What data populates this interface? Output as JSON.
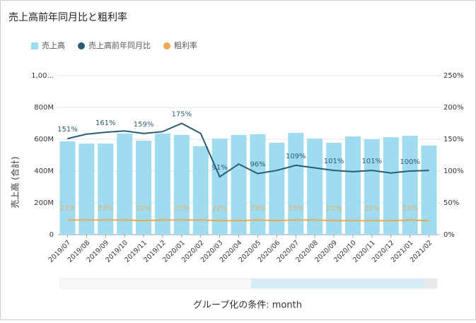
{
  "chart_data": {
    "type": "bar-line",
    "title": "売上高前年同月比と粗利率",
    "ylabel": "売上高 (合計)",
    "xlabel": "グループ化の条件: month",
    "categories": [
      "2019/07",
      "2019/08",
      "2019/09",
      "2019/10",
      "2019/11",
      "2019/12",
      "2020/01",
      "2020/02",
      "2020/03",
      "2020/04",
      "2020/05",
      "2020/06",
      "2020/07",
      "2020/08",
      "2020/09",
      "2020/10",
      "2020/11",
      "2020/12",
      "2021/01",
      "2021/02"
    ],
    "series": [
      {
        "name": "売上高",
        "type": "bar",
        "axis": "y",
        "color": "#a0dcf0",
        "values": [
          587000000,
          573000000,
          573000000,
          636000000,
          591000000,
          636000000,
          627000000,
          556000000,
          604000000,
          627000000,
          631000000,
          578000000,
          640000000,
          604000000,
          578000000,
          618000000,
          600000000,
          613000000,
          622000000,
          560000000
        ]
      },
      {
        "name": "売上高前年同月比",
        "type": "line",
        "axis": "y2",
        "color": "#2b5b73",
        "values": [
          151,
          158,
          161,
          163,
          159,
          162,
          175,
          159,
          91,
          111,
          96,
          101,
          109,
          105,
          101,
          99,
          101,
          97,
          100,
          101
        ],
        "value_labels": [
          "151%",
          null,
          "161%",
          null,
          "159%",
          null,
          "175%",
          null,
          "91%",
          null,
          "96%",
          null,
          "109%",
          null,
          "101%",
          null,
          "101%",
          null,
          "100%",
          null
        ]
      },
      {
        "name": "粗利率",
        "type": "line",
        "axis": "y2",
        "color": "#f0a84e",
        "values": [
          23,
          23,
          23,
          23,
          22,
          23,
          23,
          23,
          22,
          22,
          23,
          22,
          23,
          23,
          22,
          22,
          22,
          22,
          23,
          22
        ],
        "value_labels": [
          "23%",
          null,
          "23%",
          null,
          "22%",
          null,
          "23%",
          null,
          "22%",
          null,
          "23%",
          null,
          "23%",
          null,
          "22%",
          null,
          "22%",
          null,
          "23%",
          null
        ]
      }
    ],
    "ylim": [
      0,
      1000000000
    ],
    "yticks": [
      0,
      {
        "value": 200000000,
        "label": "200M"
      },
      {
        "value": 400000000,
        "label": "400M"
      },
      {
        "value": 600000000,
        "label": "600M"
      },
      {
        "value": 800000000,
        "label": "800M"
      },
      {
        "value": 1000000000,
        "label": "1,00..."
      }
    ],
    "y2lim": [
      0,
      250
    ],
    "y2ticks": [
      {
        "value": 0,
        "label": "0%"
      },
      {
        "value": 50,
        "label": "50%"
      },
      {
        "value": 100,
        "label": "100%"
      },
      {
        "value": 150,
        "label": "150%"
      },
      {
        "value": 200,
        "label": "200%"
      },
      {
        "value": 250,
        "label": "250%"
      }
    ],
    "grid": true
  }
}
